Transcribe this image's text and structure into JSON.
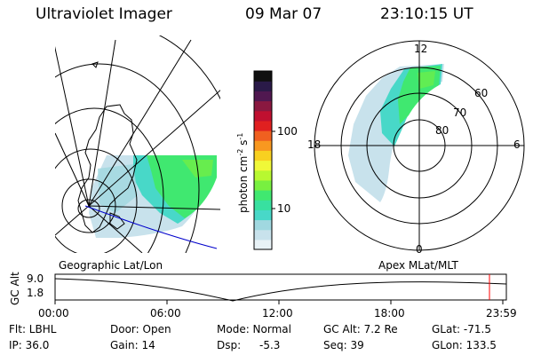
{
  "header": {
    "instrument": "Ultraviolet Imager",
    "date": "09 Mar 07",
    "time": "23:10:15 UT"
  },
  "colorbar": {
    "label": "photon cm",
    "label_sup1": "-2",
    "label_mid": "s",
    "label_sup2": "-1",
    "tick_100": "100",
    "tick_10": "10",
    "colors": [
      "#e8f2f6",
      "#c8e2ec",
      "#a0d8e0",
      "#48d8c8",
      "#38e0a0",
      "#40e870",
      "#78f040",
      "#b8f830",
      "#f0f838",
      "#f8d020",
      "#f89820",
      "#f06020",
      "#e02020",
      "#c01030",
      "#8a1840",
      "#501850",
      "#2a1a48",
      "#101010"
    ]
  },
  "polar": {
    "mlt_12": "12",
    "mlt_18": "18",
    "mlt_6": "6",
    "mlt_0": "0",
    "lat_60": "60",
    "lat_70": "70",
    "lat_80": "80"
  },
  "map_labels": {
    "geographic": "Geographic Lat/Lon",
    "apex": "Apex MLat/MLT"
  },
  "timeline": {
    "ylabel": "GC Alt",
    "y_high": "9.0",
    "y_low": "1.8",
    "ticks": [
      "00:00",
      "06:00",
      "12:00",
      "18:00",
      "23:59"
    ],
    "current_marker_color": "#ff0000"
  },
  "info": {
    "flt": "Flt: LBHL",
    "ip": "IP: 36.0",
    "door": "Door: Open",
    "gain": "Gain: 14",
    "mode": "Mode: Normal",
    "dsp_label": "Dsp:",
    "dsp_value": "-5.3",
    "gcalt": "GC Alt: 7.2 Re",
    "seq": "Seq: 39",
    "glat": "GLat: -71.5",
    "glon": "GLon: 133.5"
  },
  "colors": {
    "trajectory": "#0000cc",
    "aurora_green": "#40e870",
    "aurora_cyan": "#48d8c8",
    "aurora_light": "#c8e2ec"
  }
}
